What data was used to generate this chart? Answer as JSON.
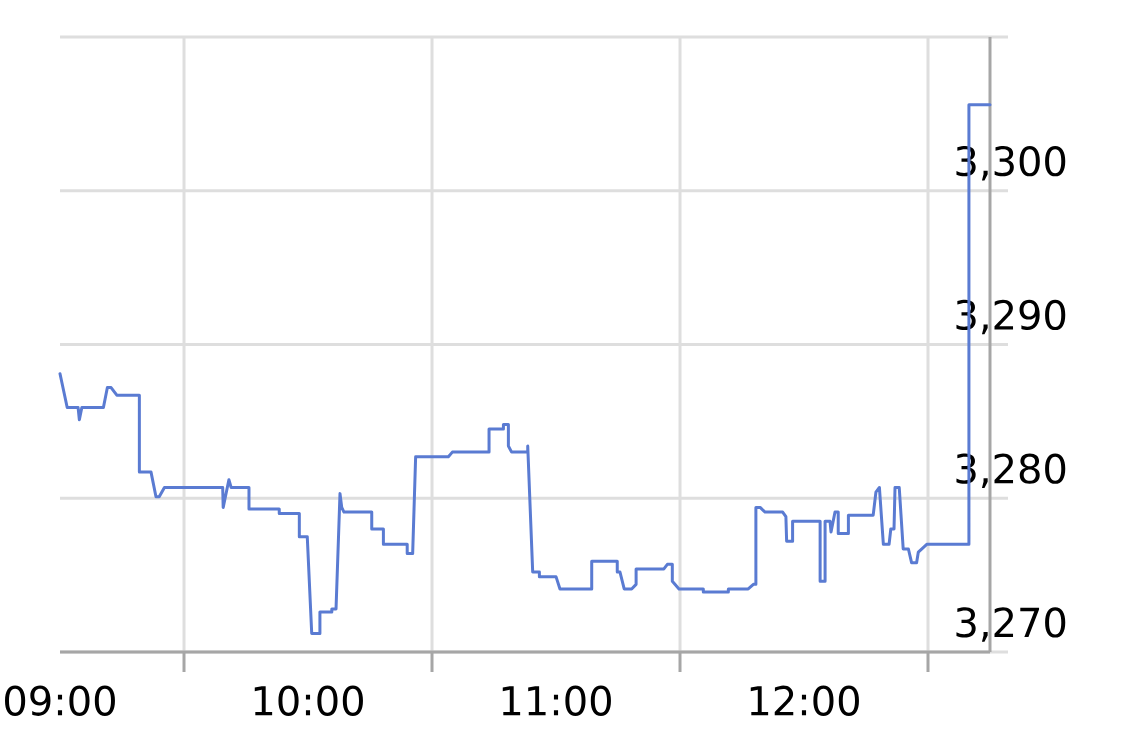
{
  "chart_data": {
    "type": "line",
    "color": "#5a7bd2",
    "x": [
      9.0,
      9.029,
      9.073,
      9.078,
      9.088,
      9.175,
      9.191,
      9.206,
      9.229,
      9.32,
      9.32,
      9.367,
      9.387,
      9.4,
      9.421,
      9.656,
      9.658,
      9.681,
      9.69,
      9.762,
      9.762,
      9.884,
      9.884,
      9.965,
      9.965,
      9.997,
      10.015,
      10.048,
      10.048,
      10.096,
      10.096,
      10.113,
      10.129,
      10.136,
      10.145,
      10.257,
      10.257,
      10.304,
      10.304,
      10.4,
      10.4,
      10.422,
      10.434,
      10.566,
      10.582,
      10.73,
      10.73,
      10.788,
      10.788,
      10.808,
      10.808,
      10.821,
      10.886,
      10.886,
      10.906,
      10.933,
      10.933,
      11.0,
      11.016,
      11.144,
      11.144,
      11.247,
      11.247,
      11.258,
      11.275,
      11.305,
      11.323,
      11.323,
      11.435,
      11.449,
      11.469,
      11.469,
      11.496,
      11.594,
      11.594,
      11.695,
      11.695,
      11.775,
      11.796,
      11.806,
      11.806,
      11.823,
      11.843,
      11.914,
      11.927,
      11.93,
      11.954,
      11.954,
      12.065,
      12.065,
      12.085,
      12.085,
      12.105,
      12.109,
      12.125,
      12.138,
      12.138,
      12.179,
      12.179,
      12.279,
      12.29,
      12.304,
      12.32,
      12.343,
      12.35,
      12.363,
      12.367,
      12.384,
      12.4,
      12.421,
      12.434,
      12.454,
      12.461,
      12.495,
      12.665,
      12.665,
      12.75
    ],
    "values": [
      3288.1,
      3285.9,
      3285.9,
      3285.1,
      3285.9,
      3285.9,
      3287.2,
      3287.2,
      3286.7,
      3286.7,
      3281.7,
      3281.7,
      3280.1,
      3280.1,
      3280.7,
      3280.7,
      3279.4,
      3281.2,
      3280.7,
      3280.7,
      3279.3,
      3279.3,
      3279.0,
      3279.0,
      3277.5,
      3277.5,
      3271.2,
      3271.2,
      3272.6,
      3272.6,
      3272.8,
      3272.8,
      3280.3,
      3279.4,
      3279.1,
      3279.1,
      3278.0,
      3278.0,
      3277.0,
      3277.0,
      3276.4,
      3276.4,
      3282.7,
      3282.7,
      3283.0,
      3283.0,
      3284.5,
      3284.5,
      3284.8,
      3284.8,
      3283.4,
      3283.0,
      3283.0,
      3283.4,
      3275.2,
      3275.2,
      3274.9,
      3274.9,
      3274.1,
      3274.1,
      3275.9,
      3275.9,
      3275.2,
      3275.2,
      3274.1,
      3274.1,
      3274.4,
      3275.4,
      3275.4,
      3275.7,
      3275.7,
      3274.6,
      3274.1,
      3274.1,
      3273.9,
      3273.9,
      3274.1,
      3274.1,
      3274.4,
      3274.4,
      3279.4,
      3279.4,
      3279.1,
      3279.1,
      3278.8,
      3277.2,
      3277.2,
      3278.5,
      3278.5,
      3274.6,
      3274.6,
      3278.5,
      3278.5,
      3277.8,
      3279.1,
      3279.1,
      3277.7,
      3277.7,
      3278.9,
      3278.9,
      3280.4,
      3280.7,
      3277.0,
      3277.0,
      3278.0,
      3278.0,
      3280.7,
      3280.7,
      3276.7,
      3276.7,
      3275.8,
      3275.8,
      3276.5,
      3277.0,
      3277.0,
      3305.6,
      3305.6
    ],
    "xlim": [
      9,
      12.75
    ],
    "xticks": [
      {
        "value": 9,
        "label": "09:00"
      },
      {
        "value": 9.5,
        "label": null
      },
      {
        "value": 10,
        "label": "10:00"
      },
      {
        "value": 10.5,
        "label": null
      },
      {
        "value": 11,
        "label": "11:00"
      },
      {
        "value": 11.5,
        "label": null
      },
      {
        "value": 12,
        "label": "12:00"
      },
      {
        "value": 12.5,
        "label": null
      }
    ],
    "ylim": [
      3270,
      3310
    ],
    "yticks": [
      {
        "value": 3270,
        "label": "3,270"
      },
      {
        "value": 3280,
        "label": "3,280"
      },
      {
        "value": 3290,
        "label": "3,290"
      },
      {
        "value": 3300,
        "label": "3,300"
      },
      {
        "value": 3310,
        "label": null
      }
    ],
    "grid": true
  }
}
